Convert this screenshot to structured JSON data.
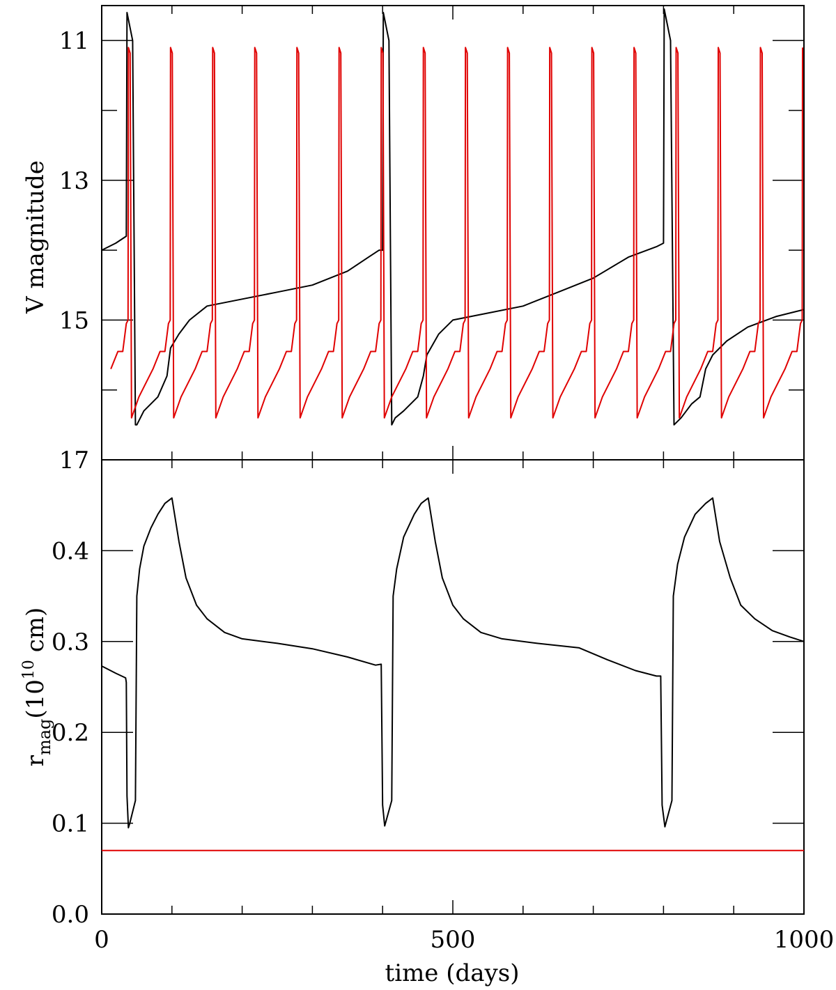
{
  "chart_data": [
    {
      "type": "line",
      "panel": "top",
      "xlim": [
        0,
        1000
      ],
      "ylim": [
        17,
        10.5
      ],
      "y_inverted": true,
      "ylabel": "V magnitude",
      "y_ticks": [
        11,
        13,
        15,
        17
      ],
      "y_tick_labels": [
        "11",
        "13",
        "15",
        "17"
      ],
      "x_ticks": [
        0,
        100,
        200,
        300,
        400,
        500,
        600,
        700,
        800,
        900,
        1000
      ],
      "x_tick_labels_shown": false,
      "series": [
        {
          "color": "#000000",
          "points": [
            [
              0,
              14.0
            ],
            [
              20,
              13.9
            ],
            [
              35,
              13.8
            ],
            [
              36,
              10.6
            ],
            [
              44,
              11.0
            ],
            [
              48,
              16.5
            ],
            [
              50,
              16.5
            ],
            [
              60,
              16.3
            ],
            [
              80,
              16.1
            ],
            [
              93,
              15.8
            ],
            [
              98,
              15.4
            ],
            [
              110,
              15.2
            ],
            [
              125,
              15.0
            ],
            [
              150,
              14.8
            ],
            [
              200,
              14.7
            ],
            [
              250,
              14.6
            ],
            [
              300,
              14.5
            ],
            [
              350,
              14.3
            ],
            [
              380,
              14.1
            ],
            [
              395,
              14.0
            ],
            [
              400,
              14.0
            ],
            [
              401,
              10.6
            ],
            [
              409,
              11.0
            ],
            [
              413,
              16.5
            ],
            [
              418,
              16.4
            ],
            [
              430,
              16.3
            ],
            [
              450,
              16.1
            ],
            [
              458,
              15.8
            ],
            [
              463,
              15.5
            ],
            [
              480,
              15.2
            ],
            [
              500,
              15.0
            ],
            [
              550,
              14.9
            ],
            [
              600,
              14.8
            ],
            [
              650,
              14.6
            ],
            [
              700,
              14.4
            ],
            [
              750,
              14.1
            ],
            [
              790,
              13.95
            ],
            [
              800,
              13.9
            ],
            [
              801,
              10.55
            ],
            [
              810,
              11.0
            ],
            [
              815,
              16.5
            ],
            [
              825,
              16.4
            ],
            [
              840,
              16.2
            ],
            [
              852,
              16.1
            ],
            [
              860,
              15.7
            ],
            [
              870,
              15.5
            ],
            [
              890,
              15.3
            ],
            [
              920,
              15.1
            ],
            [
              960,
              14.95
            ],
            [
              1000,
              14.85
            ]
          ]
        },
        {
          "color": "#e00000",
          "period": 60,
          "first_peak_day": 38,
          "peak_mag": 11.1,
          "minimum_mag": 16.4,
          "pre_outburst_mag": 15.0
        }
      ]
    },
    {
      "type": "line",
      "panel": "bottom",
      "xlim": [
        0,
        1000
      ],
      "ylim": [
        0,
        0.5
      ],
      "xlabel": "time (days)",
      "ylabel_main": "r",
      "ylabel_sub": "mag",
      "ylabel_unit_pre": "(10",
      "ylabel_unit_exp": "10",
      "ylabel_unit_post": " cm)",
      "x_ticks": [
        0,
        100,
        200,
        300,
        400,
        500,
        600,
        700,
        800,
        900,
        1000
      ],
      "x_tick_labels": [
        "0",
        "500",
        "1000"
      ],
      "x_tick_label_values": [
        0,
        500,
        1000
      ],
      "y_ticks": [
        0.0,
        0.1,
        0.2,
        0.3,
        0.4
      ],
      "y_tick_labels": [
        "0.0",
        "0.1",
        "0.2",
        "0.3",
        "0.4"
      ],
      "series": [
        {
          "color": "#000000",
          "points": [
            [
              0,
              0.273
            ],
            [
              20,
              0.265
            ],
            [
              34,
              0.26
            ],
            [
              35,
              0.255
            ],
            [
              36,
              0.13
            ],
            [
              38,
              0.095
            ],
            [
              40,
              0.1
            ],
            [
              48,
              0.125
            ],
            [
              50,
              0.35
            ],
            [
              54,
              0.38
            ],
            [
              60,
              0.405
            ],
            [
              70,
              0.425
            ],
            [
              80,
              0.44
            ],
            [
              90,
              0.452
            ],
            [
              100,
              0.458
            ],
            [
              110,
              0.41
            ],
            [
              120,
              0.37
            ],
            [
              135,
              0.34
            ],
            [
              150,
              0.325
            ],
            [
              175,
              0.31
            ],
            [
              200,
              0.303
            ],
            [
              250,
              0.298
            ],
            [
              300,
              0.292
            ],
            [
              350,
              0.283
            ],
            [
              390,
              0.274
            ],
            [
              398,
              0.275
            ],
            [
              400,
              0.12
            ],
            [
              403,
              0.097
            ],
            [
              413,
              0.125
            ],
            [
              415,
              0.35
            ],
            [
              420,
              0.38
            ],
            [
              430,
              0.415
            ],
            [
              445,
              0.44
            ],
            [
              455,
              0.452
            ],
            [
              465,
              0.458
            ],
            [
              475,
              0.41
            ],
            [
              485,
              0.37
            ],
            [
              500,
              0.34
            ],
            [
              515,
              0.325
            ],
            [
              540,
              0.31
            ],
            [
              570,
              0.303
            ],
            [
              620,
              0.298
            ],
            [
              680,
              0.293
            ],
            [
              720,
              0.28
            ],
            [
              760,
              0.268
            ],
            [
              790,
              0.262
            ],
            [
              796,
              0.262
            ],
            [
              798,
              0.12
            ],
            [
              802,
              0.096
            ],
            [
              812,
              0.125
            ],
            [
              814,
              0.35
            ],
            [
              820,
              0.385
            ],
            [
              830,
              0.415
            ],
            [
              845,
              0.44
            ],
            [
              860,
              0.452
            ],
            [
              870,
              0.458
            ],
            [
              880,
              0.41
            ],
            [
              895,
              0.37
            ],
            [
              910,
              0.34
            ],
            [
              930,
              0.325
            ],
            [
              955,
              0.312
            ],
            [
              980,
              0.305
            ],
            [
              1000,
              0.3
            ]
          ]
        },
        {
          "color": "#e00000",
          "points": [
            [
              0,
              0.07
            ],
            [
              1000,
              0.07
            ]
          ]
        }
      ]
    }
  ]
}
